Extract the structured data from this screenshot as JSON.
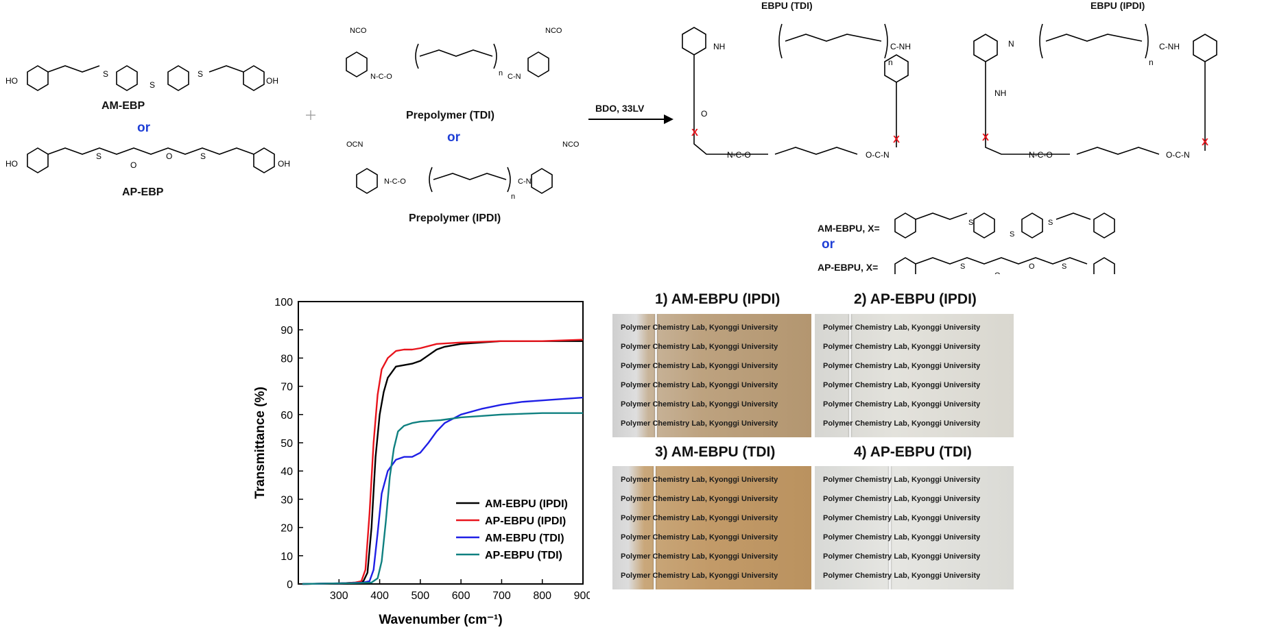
{
  "scheme": {
    "reactant1": "AM-EBP",
    "or1": "or",
    "reactant2": "AP-EBP",
    "prepolymer1": "Prepolymer (TDI)",
    "or2": "or",
    "prepolymer2": "Prepolymer (IPDI)",
    "conditions": "BDO, 33LV",
    "product1": "EBPU (TDI)",
    "product2": "EBPU (IPDI)",
    "x_def1": "AM-EBPU, X=",
    "or3": "or",
    "x_def2": "AP-EBPU, X="
  },
  "chart_data": {
    "type": "line",
    "xlabel": "Wavenumber (cm⁻¹)",
    "ylabel": "Transmittance (%)",
    "xlim": [
      200,
      900
    ],
    "ylim": [
      0,
      100
    ],
    "xticks": [
      300,
      400,
      500,
      600,
      700,
      800,
      900
    ],
    "yticks": [
      0,
      10,
      20,
      30,
      40,
      50,
      60,
      70,
      80,
      90,
      100
    ],
    "legend_position": "bottom-right",
    "series": [
      {
        "name": "AM-EBPU (IPDI)",
        "color": "#000000",
        "x": [
          210,
          300,
          340,
          360,
          370,
          380,
          390,
          400,
          410,
          420,
          440,
          460,
          480,
          500,
          520,
          540,
          560,
          600,
          650,
          700,
          800,
          900
        ],
        "y": [
          0,
          0.2,
          0.5,
          1,
          4,
          20,
          45,
          60,
          68,
          73,
          77,
          77.5,
          78,
          79,
          81,
          83,
          84,
          85,
          85.5,
          86,
          86,
          86
        ]
      },
      {
        "name": "AP-EBPU (IPDI)",
        "color": "#e8141c",
        "x": [
          210,
          300,
          340,
          355,
          365,
          375,
          385,
          395,
          405,
          420,
          440,
          460,
          480,
          500,
          540,
          600,
          700,
          800,
          900
        ],
        "y": [
          0,
          0.2,
          0.5,
          1,
          5,
          25,
          50,
          67,
          76,
          80,
          82.5,
          83,
          83,
          83.5,
          85,
          85.5,
          86,
          86,
          86.5
        ]
      },
      {
        "name": "AM-EBPU (TDI)",
        "color": "#1f1fe6",
        "x": [
          210,
          320,
          360,
          375,
          385,
          395,
          405,
          420,
          440,
          460,
          480,
          500,
          520,
          540,
          560,
          600,
          650,
          700,
          750,
          800,
          850,
          900
        ],
        "y": [
          0,
          0.3,
          0.5,
          1,
          5,
          18,
          32,
          40,
          44,
          45,
          45,
          46.5,
          50,
          54,
          57,
          60,
          62,
          63.5,
          64.5,
          65,
          65.5,
          66
        ]
      },
      {
        "name": "AP-EBPU (TDI)",
        "color": "#0f8080",
        "x": [
          210,
          330,
          380,
          395,
          405,
          415,
          425,
          435,
          445,
          460,
          480,
          500,
          550,
          600,
          650,
          700,
          800,
          900
        ],
        "y": [
          0,
          0.3,
          0.5,
          2,
          8,
          22,
          38,
          48,
          54,
          56,
          57,
          57.5,
          58,
          59,
          59.5,
          60,
          60.5,
          60.5
        ]
      }
    ]
  },
  "photos": [
    {
      "title": "1) AM-EBPU (IPDI)",
      "lines": [
        "Polymer Chemistry Lab, Kyonggi University",
        "Polymer Chemistry Lab, Kyonggi University",
        "Polymer Chemistry Lab, Kyonggi University",
        "Polymer Chemistry Lab, Kyonggi University",
        "Polymer Chemistry Lab, Kyonggi University",
        "Polymer Chemistry Lab, Kyonggi University"
      ]
    },
    {
      "title": "2) AP-EBPU (IPDI)",
      "lines": [
        "Polymer Chemistry Lab, Kyonggi University",
        "Polymer Chemistry Lab, Kyonggi University",
        "Polymer Chemistry Lab, Kyonggi University",
        "Polymer Chemistry Lab, Kyonggi University",
        "Polymer Chemistry Lab, Kyonggi University",
        "Polymer Chemistry Lab, Kyonggi University"
      ]
    },
    {
      "title": "3) AM-EBPU (TDI)",
      "lines": [
        "Polymer Chemistry Lab, Kyonggi University",
        "Polymer Chemistry Lab, Kyonggi University",
        "Polymer Chemistry Lab, Kyonggi University",
        "Polymer Chemistry Lab, Kyonggi University",
        "Polymer Chemistry Lab, Kyonggi University",
        "Polymer Chemistry Lab, Kyonggi University"
      ]
    },
    {
      "title": "4) AP-EBPU (TDI)",
      "lines": [
        "Polymer Chemistry Lab, Kyonggi University",
        "Polymer Chemistry Lab, Kyonggi University",
        "Polymer Chemistry Lab, Kyonggi University",
        "Polymer Chemistry Lab, Kyonggi University",
        "Polymer Chemistry Lab, Kyonggi University",
        "Polymer Chemistry Lab, Kyonggi University"
      ]
    }
  ]
}
